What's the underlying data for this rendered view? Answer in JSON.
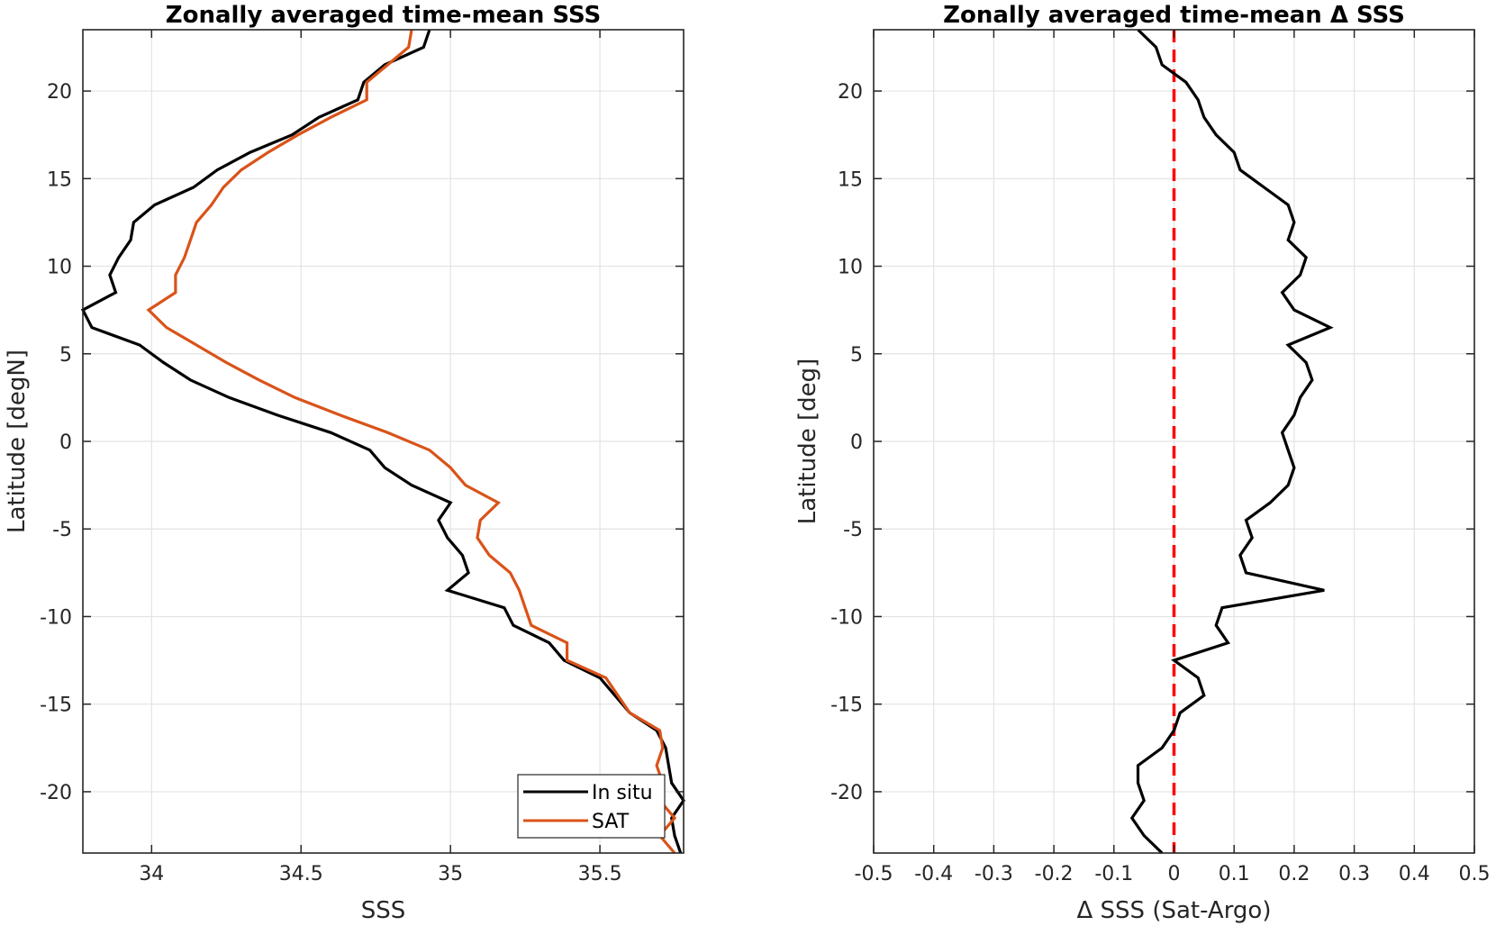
{
  "chart_data": [
    {
      "type": "line",
      "title": "Zonally averaged time-mean SSS",
      "xlabel": "SSS",
      "ylabel": "Latitude [degN]",
      "xlim": [
        33.77,
        35.78
      ],
      "ylim": [
        -23.5,
        23.5
      ],
      "xticks": [
        34,
        34.5,
        35,
        35.5
      ],
      "xtick_labels": [
        "34",
        "34.5",
        "35",
        "35.5"
      ],
      "yticks": [
        -20,
        -15,
        -10,
        -5,
        0,
        5,
        10,
        15,
        20
      ],
      "ytick_labels": [
        "-20",
        "-15",
        "-10",
        "-5",
        "0",
        "5",
        "10",
        "15",
        "20"
      ],
      "grid": true,
      "legend_position": "bottom-right",
      "series": [
        {
          "name": "In situ",
          "color": "#000000",
          "lat": [
            -23.5,
            -22.5,
            -21.5,
            -20.5,
            -19.5,
            -18.5,
            -17.5,
            -16.5,
            -15.5,
            -14.5,
            -13.5,
            -12.5,
            -11.5,
            -10.5,
            -9.5,
            -8.5,
            -7.5,
            -6.5,
            -5.5,
            -4.5,
            -3.5,
            -2.5,
            -1.5,
            -0.5,
            0.5,
            1.5,
            2.5,
            3.5,
            4.5,
            5.5,
            6.5,
            7.5,
            8.5,
            9.5,
            10.5,
            11.5,
            12.5,
            13.5,
            14.5,
            15.5,
            16.5,
            17.5,
            18.5,
            19.5,
            20.5,
            21.5,
            22.5,
            23.5
          ],
          "values": [
            35.77,
            35.75,
            35.74,
            35.78,
            35.74,
            35.73,
            35.72,
            35.69,
            35.6,
            35.55,
            35.5,
            35.38,
            35.33,
            35.21,
            35.18,
            34.99,
            35.06,
            35.04,
            34.99,
            34.96,
            35.0,
            34.87,
            34.78,
            34.73,
            34.6,
            34.42,
            34.26,
            34.13,
            34.04,
            33.96,
            33.8,
            33.77,
            33.88,
            33.86,
            33.89,
            33.93,
            33.94,
            34.01,
            34.14,
            34.22,
            34.33,
            34.47,
            34.56,
            34.69,
            34.71,
            34.78,
            34.91,
            34.93
          ]
        },
        {
          "name": "SAT",
          "color": "#D95319",
          "lat": [
            -23.5,
            -22.5,
            -21.5,
            -20.5,
            -19.5,
            -18.5,
            -17.5,
            -16.5,
            -15.5,
            -14.5,
            -13.5,
            -12.5,
            -11.5,
            -10.5,
            -9.5,
            -8.5,
            -7.5,
            -6.5,
            -5.5,
            -4.5,
            -3.5,
            -2.5,
            -1.5,
            -0.5,
            0.5,
            1.5,
            2.5,
            3.5,
            4.5,
            5.5,
            6.5,
            7.5,
            8.5,
            9.5,
            10.5,
            11.5,
            12.5,
            13.5,
            14.5,
            15.5,
            16.5,
            17.5,
            18.5,
            19.5,
            20.5,
            21.5,
            22.5,
            23.5
          ],
          "values": [
            35.75,
            35.7,
            35.75,
            35.7,
            35.71,
            35.69,
            35.71,
            35.7,
            35.6,
            35.56,
            35.52,
            35.39,
            35.39,
            35.27,
            35.25,
            35.23,
            35.2,
            35.13,
            35.09,
            35.1,
            35.16,
            35.05,
            35.0,
            34.93,
            34.79,
            34.63,
            34.48,
            34.36,
            34.25,
            34.15,
            34.05,
            33.99,
            34.08,
            34.08,
            34.11,
            34.13,
            34.15,
            34.2,
            34.24,
            34.3,
            34.39,
            34.49,
            34.6,
            34.72,
            34.72,
            34.79,
            34.86,
            34.87
          ]
        }
      ]
    },
    {
      "type": "line",
      "title": "Zonally averaged time-mean Δ SSS",
      "xlabel": "Δ SSS (Sat-Argo)",
      "ylabel": "Latitude [deg]",
      "xlim": [
        -0.5,
        0.5
      ],
      "ylim": [
        -23.5,
        23.5
      ],
      "xticks": [
        -0.5,
        -0.4,
        -0.3,
        -0.2,
        -0.1,
        0,
        0.1,
        0.2,
        0.3,
        0.4,
        0.5
      ],
      "xtick_labels": [
        "-0.5",
        "-0.4",
        "-0.3",
        "-0.2",
        "-0.1",
        "0",
        "0.1",
        "0.2",
        "0.3",
        "0.4",
        "0.5"
      ],
      "yticks": [
        -20,
        -15,
        -10,
        -5,
        0,
        5,
        10,
        15,
        20
      ],
      "ytick_labels": [
        "-20",
        "-15",
        "-10",
        "-5",
        "0",
        "5",
        "10",
        "15",
        "20"
      ],
      "grid": true,
      "reference_line": {
        "x": 0,
        "color": "#FF0000",
        "style": "dashed"
      },
      "series": [
        {
          "color": "#000000",
          "lat": [
            -23.5,
            -22.5,
            -21.5,
            -20.5,
            -19.5,
            -18.5,
            -17.5,
            -16.5,
            -15.5,
            -14.5,
            -13.5,
            -12.5,
            -11.5,
            -10.5,
            -9.5,
            -8.5,
            -7.5,
            -6.5,
            -5.5,
            -4.5,
            -3.5,
            -2.5,
            -1.5,
            -0.5,
            0.5,
            1.5,
            2.5,
            3.5,
            4.5,
            5.5,
            6.5,
            7.5,
            8.5,
            9.5,
            10.5,
            11.5,
            12.5,
            13.5,
            14.5,
            15.5,
            16.5,
            17.5,
            18.5,
            19.5,
            20.5,
            21.5,
            22.5,
            23.5
          ],
          "values": [
            -0.02,
            -0.05,
            -0.07,
            -0.05,
            -0.06,
            -0.06,
            -0.02,
            0.0,
            0.01,
            0.05,
            0.04,
            0.0,
            0.09,
            0.07,
            0.08,
            0.25,
            0.12,
            0.11,
            0.13,
            0.12,
            0.16,
            0.19,
            0.2,
            0.19,
            0.18,
            0.2,
            0.21,
            0.23,
            0.22,
            0.19,
            0.26,
            0.2,
            0.18,
            0.21,
            0.22,
            0.19,
            0.2,
            0.19,
            0.15,
            0.11,
            0.1,
            0.07,
            0.05,
            0.04,
            0.02,
            -0.02,
            -0.03,
            -0.06
          ]
        }
      ]
    }
  ]
}
